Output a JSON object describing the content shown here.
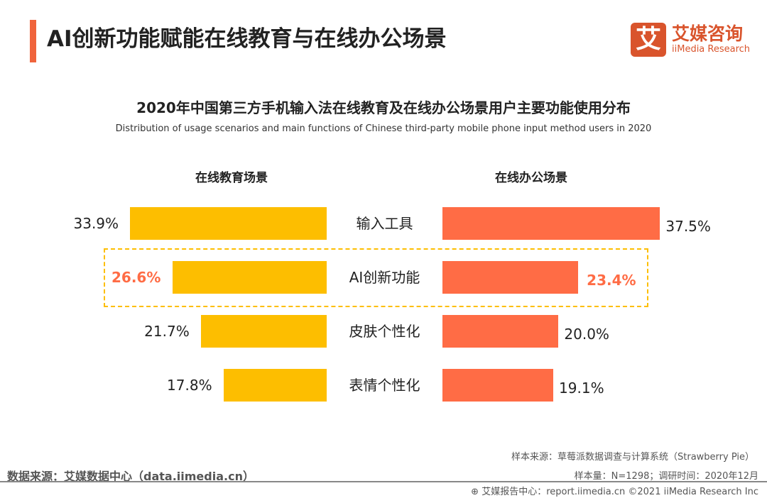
{
  "header": {
    "title": "AI创新功能赋能在线教育与在线办公场景",
    "logo_cn": "艾媒咨询",
    "logo_en": "iiMedia Research",
    "logo_mark": "艾"
  },
  "chart_data": {
    "type": "bar",
    "title": "2020年中国第三方手机输入法在线教育及在线办公场景用户主要功能使用分布",
    "subtitle": "Distribution of usage scenarios and main functions of Chinese third-party mobile phone input method users in 2020",
    "categories": [
      "输入工具",
      "AI创新功能",
      "皮肤个性化",
      "表情个性化"
    ],
    "series": [
      {
        "name": "在线教育场景",
        "values": [
          33.9,
          26.6,
          21.7,
          17.8
        ],
        "labels": [
          "33.9%",
          "26.6%",
          "21.7%",
          "17.8%"
        ],
        "color": "#FDBE00"
      },
      {
        "name": "在线办公场景",
        "values": [
          37.5,
          23.4,
          20.0,
          19.1
        ],
        "labels": [
          "37.5%",
          "23.4%",
          "20.0%",
          "19.1%"
        ],
        "color": "#FF6C45"
      }
    ],
    "highlight_category": "AI创新功能",
    "highlight_color": "#FF6C45",
    "unit": "%"
  },
  "footer": {
    "sample_source": "样本来源：草莓派数据调查与计算系统（Strawberry Pie）",
    "sample_size": "样本量：N=1298；调研时间：2020年12月",
    "data_source": "数据来源：艾媒数据中心（data.iimedia.cn）",
    "report": "艾媒报告中心：report.iimedia.cn  ©2021  iiMedia Research  Inc"
  }
}
